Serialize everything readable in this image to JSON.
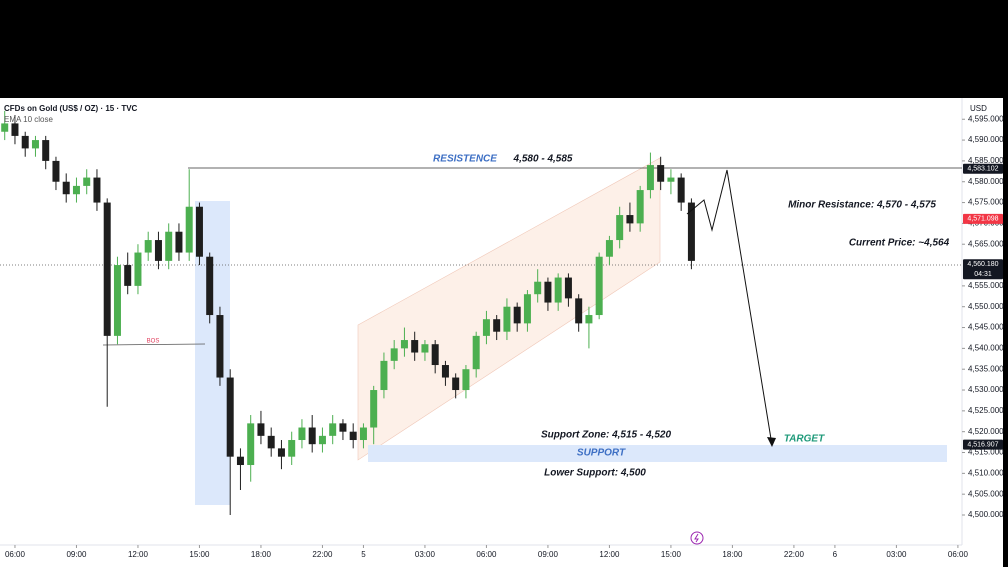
{
  "chart_data": {
    "type": "candlestick",
    "title": "CFDs on Gold (US$ / OZ) · 15 · TVC",
    "subtitle": "EMA 10 close",
    "currency": "USD",
    "up_color": "#4caf50",
    "down_color": "#1e1e1e",
    "x": [
      -0.5,
      0,
      0.5,
      1,
      1.5,
      2,
      2.5,
      3,
      3.5,
      4,
      4.5,
      5,
      5.5,
      6,
      6.5,
      7,
      7.5,
      8,
      8.5,
      9,
      9.5,
      10,
      10.5,
      11,
      11.5,
      12,
      12.5,
      13,
      13.5,
      14,
      14.5,
      15,
      15.5,
      16,
      16.5,
      17,
      17.5,
      18,
      18.5,
      19,
      19.5,
      20,
      20.5,
      21,
      21.5,
      22,
      22.5,
      23,
      23.5,
      24,
      24.5,
      25,
      25.5,
      26,
      26.5,
      27,
      27.5,
      28,
      28.5,
      29,
      29.5,
      30,
      30.5,
      31,
      31.5,
      32,
      32.5,
      33
    ],
    "open": [
      4592,
      4594,
      4591,
      4588,
      4590,
      4585,
      4580,
      4577,
      4579,
      4581,
      4575,
      4543,
      4560,
      4555,
      4563,
      4566,
      4561,
      4568,
      4563,
      4574,
      4562,
      4548,
      4533,
      4514,
      4512,
      4522,
      4519,
      4516,
      4514,
      4518,
      4521,
      4517,
      4519,
      4522,
      4520,
      4518,
      4521,
      4530,
      4537,
      4540,
      4542,
      4539,
      4541,
      4536,
      4533,
      4530,
      4535,
      4543,
      4547,
      4544,
      4550,
      4546,
      4553,
      4556,
      4551,
      4557,
      4552,
      4546,
      4548,
      4562,
      4566,
      4572,
      4570,
      4578,
      4584,
      4580,
      4581,
      4575
    ],
    "high": [
      4597,
      4596,
      4592,
      4591,
      4591,
      4586,
      4582,
      4581,
      4583,
      4583,
      4576,
      4562,
      4563,
      4565,
      4568,
      4568,
      4570,
      4570,
      4583,
      4575,
      4563,
      4550,
      4535,
      4516,
      4524,
      4525,
      4521,
      4518,
      4520,
      4523,
      4524,
      4521,
      4524,
      4523,
      4522,
      4522,
      4531,
      4539,
      4542,
      4545,
      4544,
      4542,
      4542,
      4537,
      4534,
      4536,
      4544,
      4549,
      4548,
      4552,
      4551,
      4554,
      4559,
      4557,
      4558,
      4558,
      4553,
      4550,
      4563,
      4567,
      4574,
      4575,
      4579,
      4587,
      4586,
      4583,
      4582,
      4576
    ],
    "low": [
      4590,
      4589,
      4586,
      4586,
      4583,
      4578,
      4575,
      4575,
      4577,
      4573,
      4526,
      4541,
      4553,
      4553,
      4561,
      4559,
      4559,
      4561,
      4561,
      4560,
      4546,
      4531,
      4500,
      4506,
      4508,
      4517,
      4514,
      4511,
      4512,
      4516,
      4515,
      4515,
      4517,
      4518,
      4516,
      4516,
      4517,
      4528,
      4535,
      4538,
      4537,
      4537,
      4534,
      4531,
      4528,
      4528,
      4533,
      4541,
      4542,
      4542,
      4544,
      4544,
      4551,
      4549,
      4549,
      4550,
      4544,
      4540,
      4547,
      4560,
      4564,
      4568,
      4568,
      4576,
      4578,
      4577,
      4573,
      4559
    ],
    "close": [
      4594,
      4591,
      4588,
      4590,
      4585,
      4580,
      4577,
      4579,
      4581,
      4575,
      4543,
      4560,
      4555,
      4563,
      4566,
      4561,
      4568,
      4563,
      4574,
      4562,
      4548,
      4533,
      4514,
      4512,
      4522,
      4519,
      4516,
      4514,
      4518,
      4521,
      4517,
      4519,
      4522,
      4520,
      4518,
      4521,
      4530,
      4537,
      4540,
      4542,
      4539,
      4541,
      4536,
      4533,
      4530,
      4535,
      4543,
      4547,
      4544,
      4550,
      4546,
      4553,
      4556,
      4551,
      4557,
      4552,
      4546,
      4548,
      4562,
      4566,
      4572,
      4570,
      4578,
      4584,
      4580,
      4581,
      4575,
      4561
    ],
    "xlim": [
      -0.73,
      46.2
    ],
    "ylim": [
      4492.8,
      4600.1
    ],
    "xticks": [
      {
        "value": 0,
        "label": "06:00"
      },
      {
        "value": 3,
        "label": "09:00"
      },
      {
        "value": 6,
        "label": "12:00"
      },
      {
        "value": 9,
        "label": "15:00"
      },
      {
        "value": 12,
        "label": "18:00"
      },
      {
        "value": 15,
        "label": "22:00"
      },
      {
        "value": 17,
        "label": "5"
      },
      {
        "value": 20,
        "label": "03:00"
      },
      {
        "value": 23,
        "label": "06:00"
      },
      {
        "value": 26,
        "label": "09:00"
      },
      {
        "value": 29,
        "label": "12:00"
      },
      {
        "value": 32,
        "label": "15:00"
      },
      {
        "value": 35,
        "label": "18:00"
      },
      {
        "value": 38,
        "label": "22:00"
      },
      {
        "value": 40,
        "label": "6"
      },
      {
        "value": 43,
        "label": "03:00"
      },
      {
        "value": 46,
        "label": "06:00"
      }
    ],
    "yticks": [
      {
        "value": 4500,
        "label": "4,500.000"
      },
      {
        "value": 4505,
        "label": "4,505.000"
      },
      {
        "value": 4510,
        "label": "4,510.000"
      },
      {
        "value": 4515,
        "label": "4,515.000"
      },
      {
        "value": 4520,
        "label": "4,520.000"
      },
      {
        "value": 4525,
        "label": "4,525.000"
      },
      {
        "value": 4530,
        "label": "4,530.000"
      },
      {
        "value": 4535,
        "label": "4,535.000"
      },
      {
        "value": 4540,
        "label": "4,540.000"
      },
      {
        "value": 4545,
        "label": "4,545.000"
      },
      {
        "value": 4550,
        "label": "4,550.000"
      },
      {
        "value": 4555,
        "label": "4,555.000"
      },
      {
        "value": 4565,
        "label": "4,565.000"
      },
      {
        "value": 4570,
        "label": "4,570.000"
      },
      {
        "value": 4575,
        "label": "4,575.000"
      },
      {
        "value": 4580,
        "label": "4,580.000"
      },
      {
        "value": 4585,
        "label": "4,585.000"
      },
      {
        "value": 4590,
        "label": "4,590.000"
      },
      {
        "value": 4595,
        "label": "4,595.000"
      }
    ],
    "price_tags": [
      {
        "value": 4583.102,
        "label": "4,583.102",
        "color": "#131722"
      },
      {
        "value": 4571.098,
        "label": "4,571.098",
        "color": "#f23645"
      },
      {
        "value": 4560.18,
        "label": "4,560.180",
        "color": "#131722"
      },
      {
        "value": 4516.907,
        "label": "4,516.907",
        "color": "#131722"
      }
    ],
    "countdown": "04:31",
    "annotations": [
      "RESISTENCE",
      "4,580 - 4,585",
      "Minor Resistance: 4,570 - 4,575",
      "Current Price: ~4,564",
      "Support Zone: 4,515 - 4,520",
      "SUPPORT",
      "Lower Support: 4,500",
      "TARGET",
      "BOS"
    ]
  }
}
